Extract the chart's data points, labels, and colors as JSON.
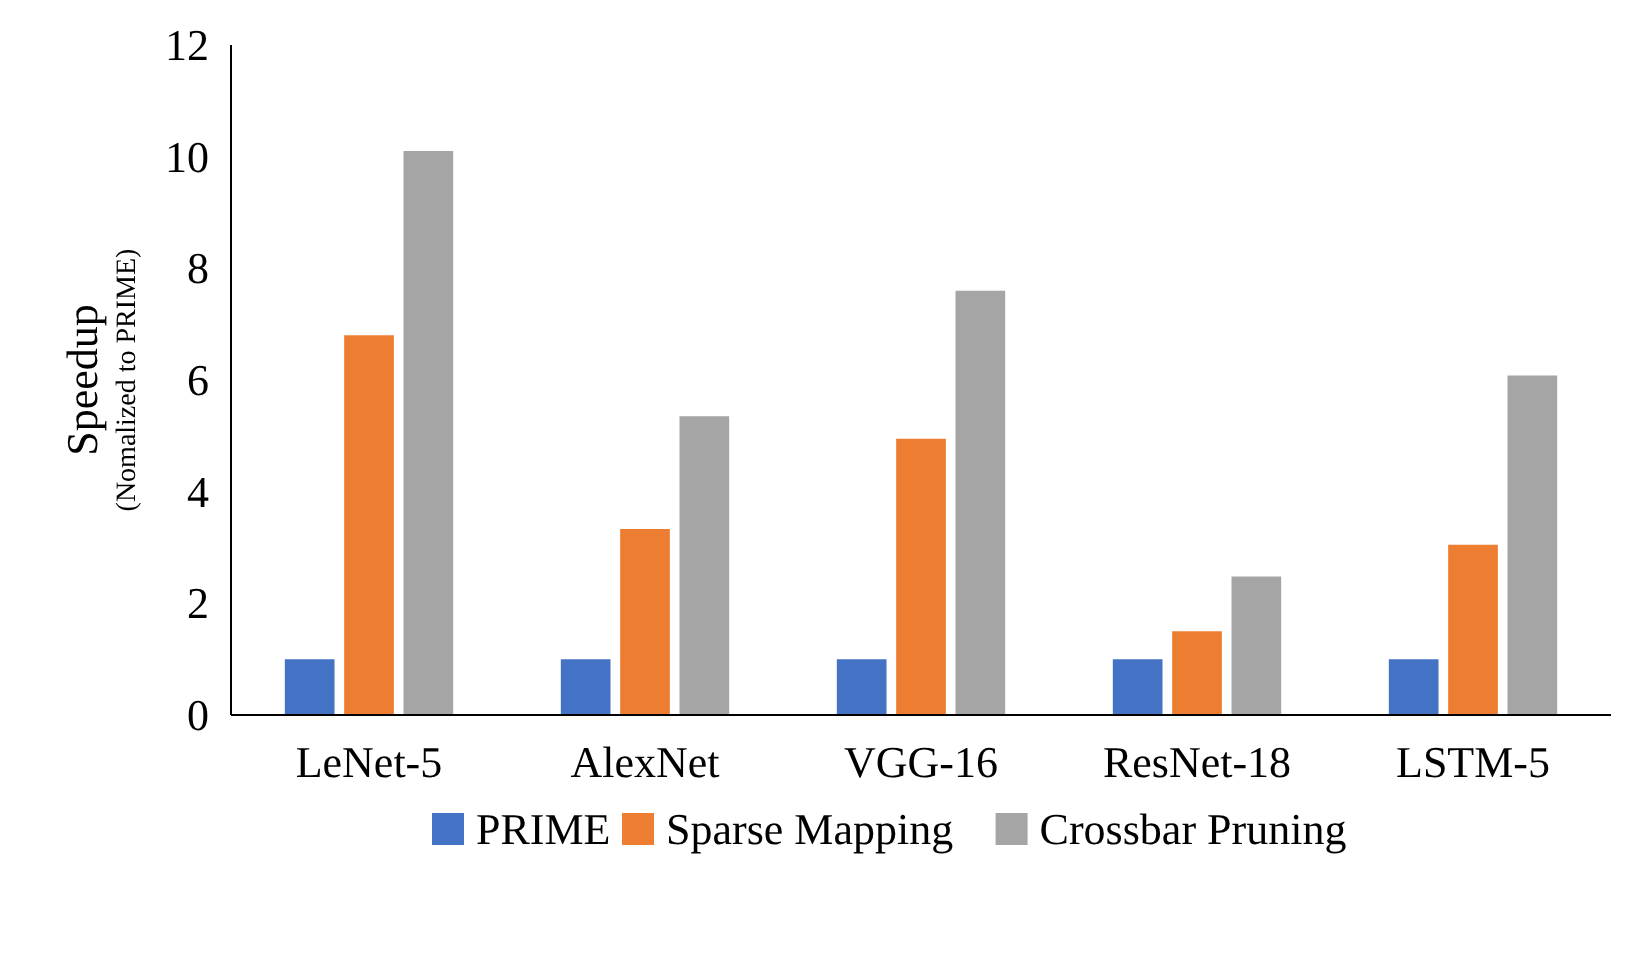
{
  "chart_data": {
    "type": "bar",
    "ylabel": "Speedup",
    "annotations": [
      "(Nomalized to PRIME)"
    ],
    "categories": [
      "LeNet-5",
      "AlexNet",
      "VGG-16",
      "ResNet-18",
      "LSTM-5"
    ],
    "series": [
      {
        "name": "PRIME",
        "color": "#4472c4",
        "values": [
          1,
          1,
          1,
          1,
          1
        ]
      },
      {
        "name": "Sparse Mapping",
        "color": "#ed7d31",
        "values": [
          6.8,
          3.33,
          4.95,
          1.5,
          3.05
        ]
      },
      {
        "name": "Crossbar Pruning",
        "color": "#a5a5a5",
        "values": [
          10.1,
          5.35,
          7.6,
          2.48,
          6.08
        ]
      }
    ],
    "ylim": [
      0,
      12
    ],
    "yticks": [
      0,
      2,
      4,
      6,
      8,
      10,
      12
    ],
    "grid": false,
    "legend": "bottom"
  }
}
